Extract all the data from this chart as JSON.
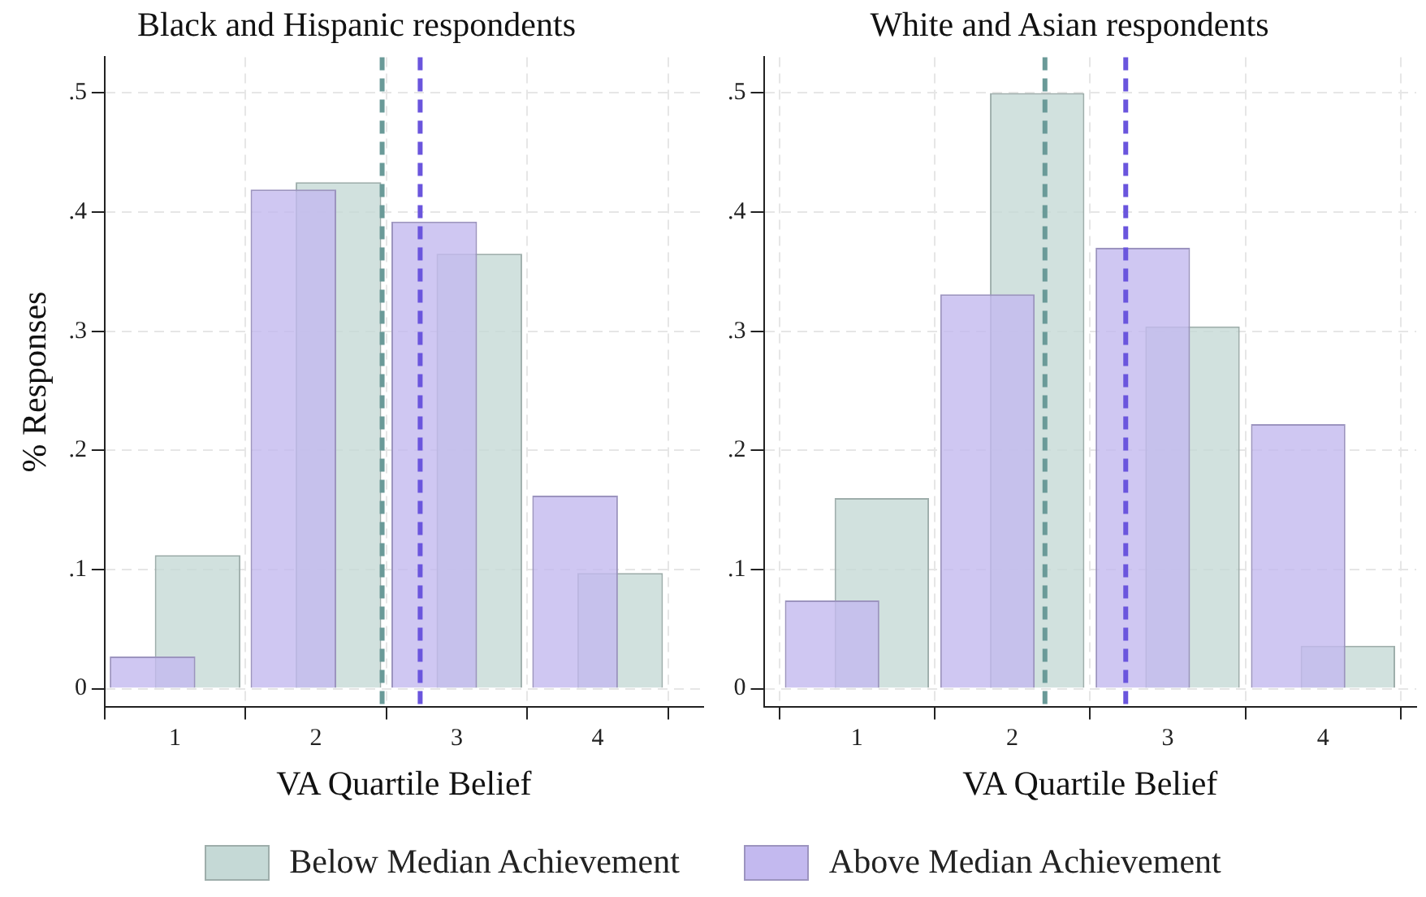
{
  "chart_data": [
    {
      "type": "bar",
      "title": "Black and Hispanic respondents",
      "xlabel": "VA Quartile Belief",
      "ylabel": "% Responses",
      "x": [
        1,
        2,
        3,
        4
      ],
      "xlim": [
        0.5,
        4.75
      ],
      "xticks": [
        1,
        2,
        3,
        4
      ],
      "ylim": [
        -0.015,
        0.53
      ],
      "yticks": [
        {
          "value": 0,
          "label": "0"
        },
        {
          "value": 0.1,
          "label": ".1"
        },
        {
          "value": 0.2,
          "label": ".2"
        },
        {
          "value": 0.3,
          "label": ".3"
        },
        {
          "value": 0.4,
          "label": ".4"
        },
        {
          "value": 0.5,
          "label": ".5"
        }
      ],
      "grid": true,
      "legend": "bottom",
      "series": [
        {
          "name": "Below Median Achievement",
          "color": "#c5d9d6",
          "values": [
            0.112,
            0.425,
            0.365,
            0.097
          ]
        },
        {
          "name": "Above Median Achievement",
          "color": "#c3b9ef",
          "values": [
            0.027,
            0.419,
            0.392,
            0.162
          ]
        }
      ],
      "ref_lines": [
        {
          "axis": "x",
          "value": 2.47,
          "color": "#6a9a98",
          "line_style": "dashed"
        },
        {
          "axis": "x",
          "value": 2.74,
          "color": "#6a55dd",
          "line_style": "dashed"
        }
      ]
    },
    {
      "type": "bar",
      "title": "White and Asian respondents",
      "xlabel": "VA Quartile Belief",
      "x": [
        1,
        2,
        3,
        4
      ],
      "xlim": [
        0.4,
        4.6
      ],
      "xticks": [
        1,
        2,
        3,
        4
      ],
      "ylim": [
        -0.015,
        0.53
      ],
      "yticks": [
        {
          "value": 0,
          "label": "0"
        },
        {
          "value": 0.1,
          "label": ".1"
        },
        {
          "value": 0.2,
          "label": ".2"
        },
        {
          "value": 0.3,
          "label": ".3"
        },
        {
          "value": 0.4,
          "label": ".4"
        },
        {
          "value": 0.5,
          "label": ".5"
        }
      ],
      "grid": true,
      "series": [
        {
          "color": "#c5d9d6",
          "values": [
            0.16,
            0.5,
            0.304,
            0.036
          ]
        },
        {
          "color": "#c3b9ef",
          "values": [
            0.074,
            0.331,
            0.37,
            0.222
          ]
        }
      ],
      "ref_lines": [
        {
          "axis": "x",
          "value": 2.21,
          "color": "#6a9a98",
          "line_style": "dashed"
        },
        {
          "axis": "x",
          "value": 2.73,
          "color": "#6a55dd",
          "line_style": "dashed"
        }
      ]
    }
  ]
}
